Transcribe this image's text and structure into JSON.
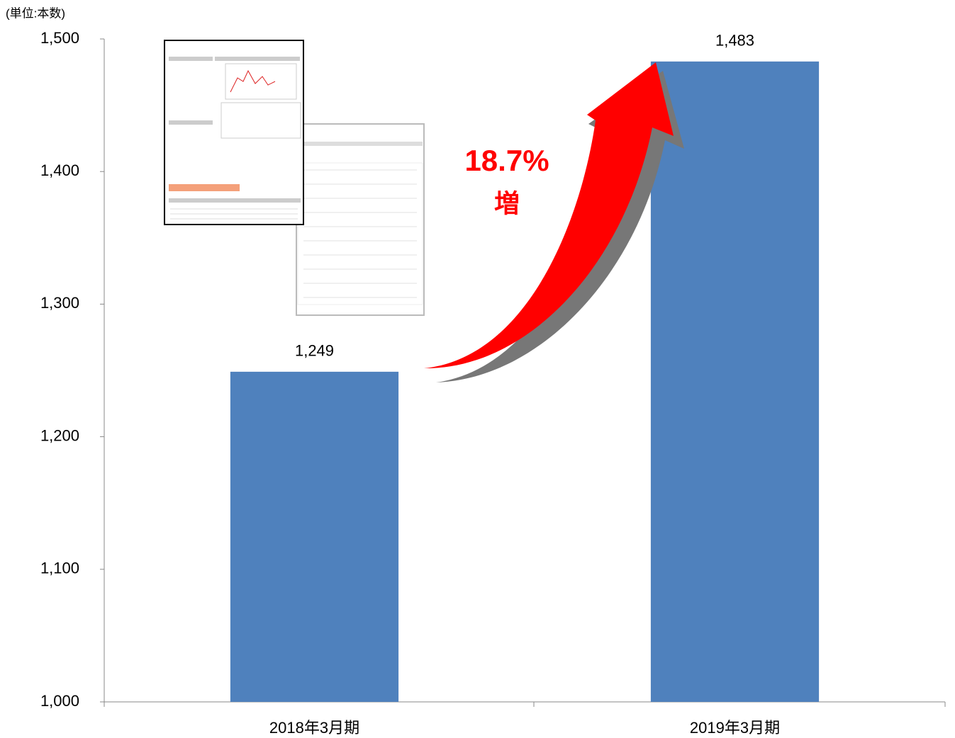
{
  "chart_data": {
    "type": "bar",
    "unit_label": "(単位:本数)",
    "categories": [
      "2018年3月期",
      "2019年3月期"
    ],
    "values": [
      1249,
      1483
    ],
    "value_labels": [
      "1,249",
      "1,483"
    ],
    "color": "#4f81bd",
    "ylim": [
      1000,
      1500
    ],
    "yticks": [
      {
        "value": 1000,
        "label": "1,000"
      },
      {
        "value": 1100,
        "label": "1,100"
      },
      {
        "value": 1200,
        "label": "1,200"
      },
      {
        "value": 1300,
        "label": "1,300"
      },
      {
        "value": 1400,
        "label": "1,400"
      },
      {
        "value": 1500,
        "label": "1,500"
      }
    ],
    "annotations": [
      "18.7%",
      "増"
    ]
  }
}
